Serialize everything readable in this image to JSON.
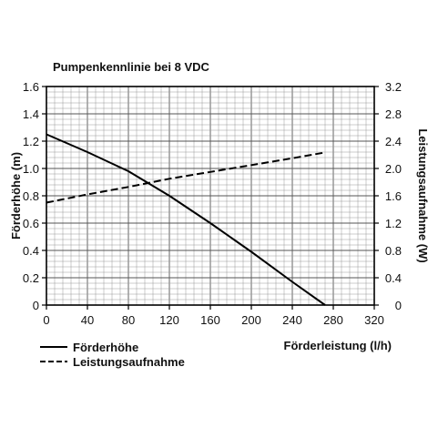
{
  "chart_data": {
    "type": "line",
    "title": "Pumpenkennlinie bei 8 VDC",
    "xlabel": "Förderleistung (l/h)",
    "ylabel_left": "Förderhöhe (m)",
    "ylabel_right": "Leistungsaufnahme (W)",
    "xlim": [
      0,
      320
    ],
    "ylim_left": [
      0,
      1.6
    ],
    "ylim_right": [
      0,
      3.2
    ],
    "x_ticks": [
      "0",
      "40",
      "80",
      "120",
      "160",
      "200",
      "240",
      "280",
      "320"
    ],
    "y_left_ticks": [
      "0",
      "0.2",
      "0.4",
      "0.6",
      "0.8",
      "1.0",
      "1.2",
      "1.4",
      "1.6"
    ],
    "y_right_ticks": [
      "0",
      "0.4",
      "0.8",
      "1.2",
      "1.6",
      "2.0",
      "2.4",
      "2.8",
      "3.2"
    ],
    "grid": true,
    "legend_position": "bottom-left",
    "series": [
      {
        "name": "Förderhöhe",
        "axis": "left",
        "style": "solid",
        "x": [
          0,
          40,
          80,
          100,
          120,
          160,
          200,
          240,
          272
        ],
        "y": [
          1.25,
          1.12,
          0.98,
          0.89,
          0.8,
          0.6,
          0.39,
          0.17,
          0.0
        ]
      },
      {
        "name": "Leistungsaufnahme",
        "axis": "right",
        "style": "dashed",
        "x": [
          0,
          40,
          80,
          120,
          160,
          200,
          240,
          270
        ],
        "y": [
          1.5,
          1.62,
          1.73,
          1.85,
          1.95,
          2.05,
          2.15,
          2.23
        ]
      }
    ]
  }
}
